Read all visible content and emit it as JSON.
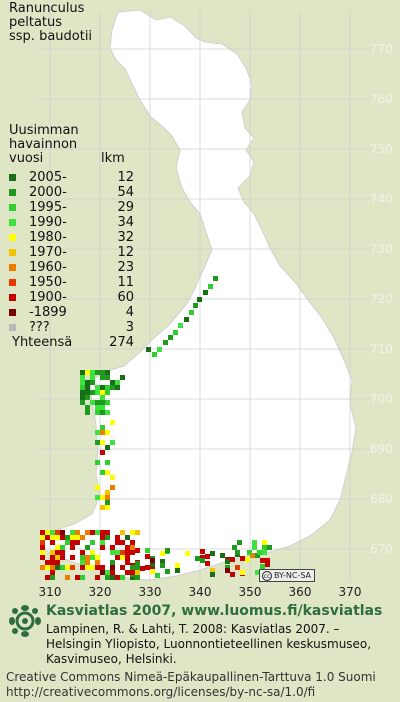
{
  "species": {
    "line1": "Ranunculus",
    "line2": "peltatus",
    "line3": "ssp. baudotii"
  },
  "legend": {
    "header": [
      "Uusimman",
      "havainnon"
    ],
    "col_year": "vuosi",
    "col_count": "lkm",
    "rows": [
      {
        "label": "2005-",
        "count": "12",
        "color": "#1a6e1a"
      },
      {
        "label": "2000-",
        "count": "54",
        "color": "#1f9a1f"
      },
      {
        "label": "1995-",
        "count": "29",
        "color": "#2fcf2f"
      },
      {
        "label": "1990-",
        "count": "34",
        "color": "#3ee23e"
      },
      {
        "label": "1980-",
        "count": "32",
        "color": "#ffff00"
      },
      {
        "label": "1970-",
        "count": "12",
        "color": "#f2c400"
      },
      {
        "label": "1960-",
        "count": "23",
        "color": "#f07c00"
      },
      {
        "label": "1950-",
        "count": "11",
        "color": "#e23a00"
      },
      {
        "label": "1900-",
        "count": "60",
        "color": "#c40000"
      },
      {
        "label": "-1899",
        "count": "4",
        "color": "#7a0000"
      },
      {
        "label": "???",
        "count": "3",
        "color": "#b9b9b9"
      }
    ],
    "total_label": "Yhteensä",
    "total_count": "274"
  },
  "grid": {
    "y_labels": [
      "770",
      "760",
      "750",
      "740",
      "730",
      "720",
      "710",
      "700",
      "690",
      "680",
      "670"
    ],
    "x_labels": [
      "310",
      "320",
      "330",
      "340",
      "350",
      "360",
      "370"
    ]
  },
  "badge": {
    "text": "BY-NC-SA",
    "logo": "cc"
  },
  "footer": {
    "title": "Kasviatlas 2007, www.luomus.fi/kasviatlas",
    "reference": "Lampinen, R. & Lahti, T. 2008: Kasviatlas 2007. – Helsingin Yliopisto, Luonnontieteellinen keskusmuseo, Kasvimuseo, Helsinki.",
    "license_line1": "Creative Commons Nimeä-Epäkaupallinen-Tarttuva 1.0 Suomi",
    "license_line2": "http://creativecommons.org/licenses/by-nc-sa/1.0/fi"
  },
  "colors": {
    "background": "#dfe6c6",
    "land": "#ffffff",
    "grid": "#c8c8c8",
    "brand": "#2e6d3d"
  }
}
